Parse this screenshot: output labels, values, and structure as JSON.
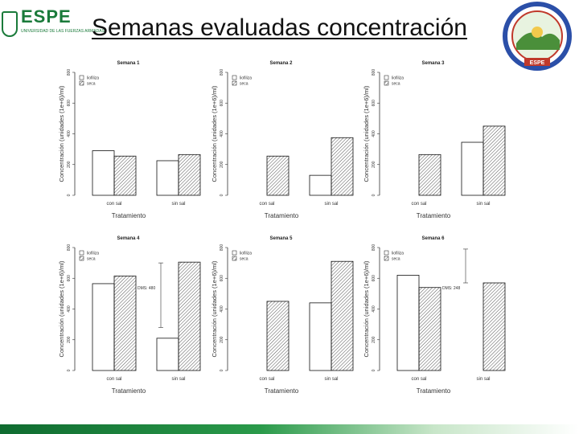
{
  "header": {
    "title": "Semanas evaluadas concentración",
    "logo_text": "ESPE",
    "logo_subtitle": "UNIVERSIDAD DE LAS FUERZAS ARMADAS",
    "seal_label": "ESPE"
  },
  "colors": {
    "brand_green": "#1a7a3a",
    "bar_outline": "#111111",
    "hatch": "#555555",
    "seal_blue": "#2b4fa8",
    "seal_red": "#c0392b"
  },
  "chart_data": [
    {
      "type": "bar",
      "title": "Semana 1",
      "xlabel": "Tratamiento",
      "ylabel": "Concentración (unidades (1e+6)/ml)",
      "categories": [
        "con sal",
        "sin sal"
      ],
      "ylim": [
        0,
        800
      ],
      "yticks": [
        "0",
        "200",
        "400",
        "600",
        "800"
      ],
      "series": [
        {
          "name": "liofiliza",
          "values": [
            290,
            225
          ],
          "pattern": "open"
        },
        {
          "name": "seca",
          "values": [
            255,
            265
          ],
          "pattern": "hatch"
        }
      ],
      "legend": "top-left",
      "annotation": ""
    },
    {
      "type": "bar",
      "title": "Semana 2",
      "xlabel": "Tratamiento",
      "ylabel": "Concentración (unidades (1e+6)/ml)",
      "categories": [
        "con sal",
        "sin sal"
      ],
      "ylim": [
        0,
        800
      ],
      "yticks": [
        "0",
        "200",
        "400",
        "600",
        "800"
      ],
      "series": [
        {
          "name": "liofiliza",
          "values": [
            0,
            130
          ],
          "pattern": "open"
        },
        {
          "name": "seca",
          "values": [
            255,
            375
          ],
          "pattern": "hatch"
        }
      ],
      "legend": "top-left",
      "annotation": ""
    },
    {
      "type": "bar",
      "title": "Semana 3",
      "xlabel": "Tratamiento",
      "ylabel": "Concentración (unidades (1e+6)/ml)",
      "categories": [
        "con sal",
        "sin sal"
      ],
      "ylim": [
        0,
        800
      ],
      "yticks": [
        "0",
        "200",
        "400",
        "600",
        "800"
      ],
      "series": [
        {
          "name": "liofiliza",
          "values": [
            0,
            345
          ],
          "pattern": "open"
        },
        {
          "name": "seca",
          "values": [
            265,
            450
          ],
          "pattern": "hatch"
        }
      ],
      "legend": "top-left",
      "annotation": ""
    },
    {
      "type": "bar",
      "title": "Semana 4",
      "xlabel": "Tratamiento",
      "ylabel": "Concentración (unidades (1e+6)/ml)",
      "categories": [
        "con sal",
        "sin sal"
      ],
      "ylim": [
        0,
        800
      ],
      "yticks": [
        "0",
        "200",
        "400",
        "600",
        "800"
      ],
      "series": [
        {
          "name": "liofiliza",
          "values": [
            565,
            210
          ],
          "pattern": "open"
        },
        {
          "name": "seca",
          "values": [
            615,
            705
          ],
          "pattern": "hatch"
        }
      ],
      "legend": "top-left",
      "annotation": "DMS: 480",
      "error_bar": {
        "category": "sin sal",
        "low": 280,
        "high": 700
      }
    },
    {
      "type": "bar",
      "title": "Semana 5",
      "xlabel": "Tratamiento",
      "ylabel": "Concentración (unidades (1e+6)/ml)",
      "categories": [
        "con sal",
        "sin sal"
      ],
      "ylim": [
        0,
        800
      ],
      "yticks": [
        "0",
        "200",
        "400",
        "600",
        "800"
      ],
      "series": [
        {
          "name": "liofiliza",
          "values": [
            0,
            440
          ],
          "pattern": "open"
        },
        {
          "name": "seca",
          "values": [
            450,
            710
          ],
          "pattern": "hatch"
        }
      ],
      "legend": "top-left",
      "annotation": ""
    },
    {
      "type": "bar",
      "title": "Semana 6",
      "xlabel": "Tratamiento",
      "ylabel": "Concentración (unidades (1e+6)/ml)",
      "categories": [
        "con sal",
        "sin sal"
      ],
      "ylim": [
        0,
        800
      ],
      "yticks": [
        "0",
        "200",
        "400",
        "600",
        "800"
      ],
      "series": [
        {
          "name": "liofiliza",
          "values": [
            620,
            0
          ],
          "pattern": "open"
        },
        {
          "name": "seca",
          "values": [
            540,
            570
          ],
          "pattern": "hatch"
        }
      ],
      "legend": "top-left",
      "annotation": "DMS: 248",
      "error_bar": {
        "category": "sin sal",
        "low": 570,
        "high": 790
      }
    }
  ]
}
